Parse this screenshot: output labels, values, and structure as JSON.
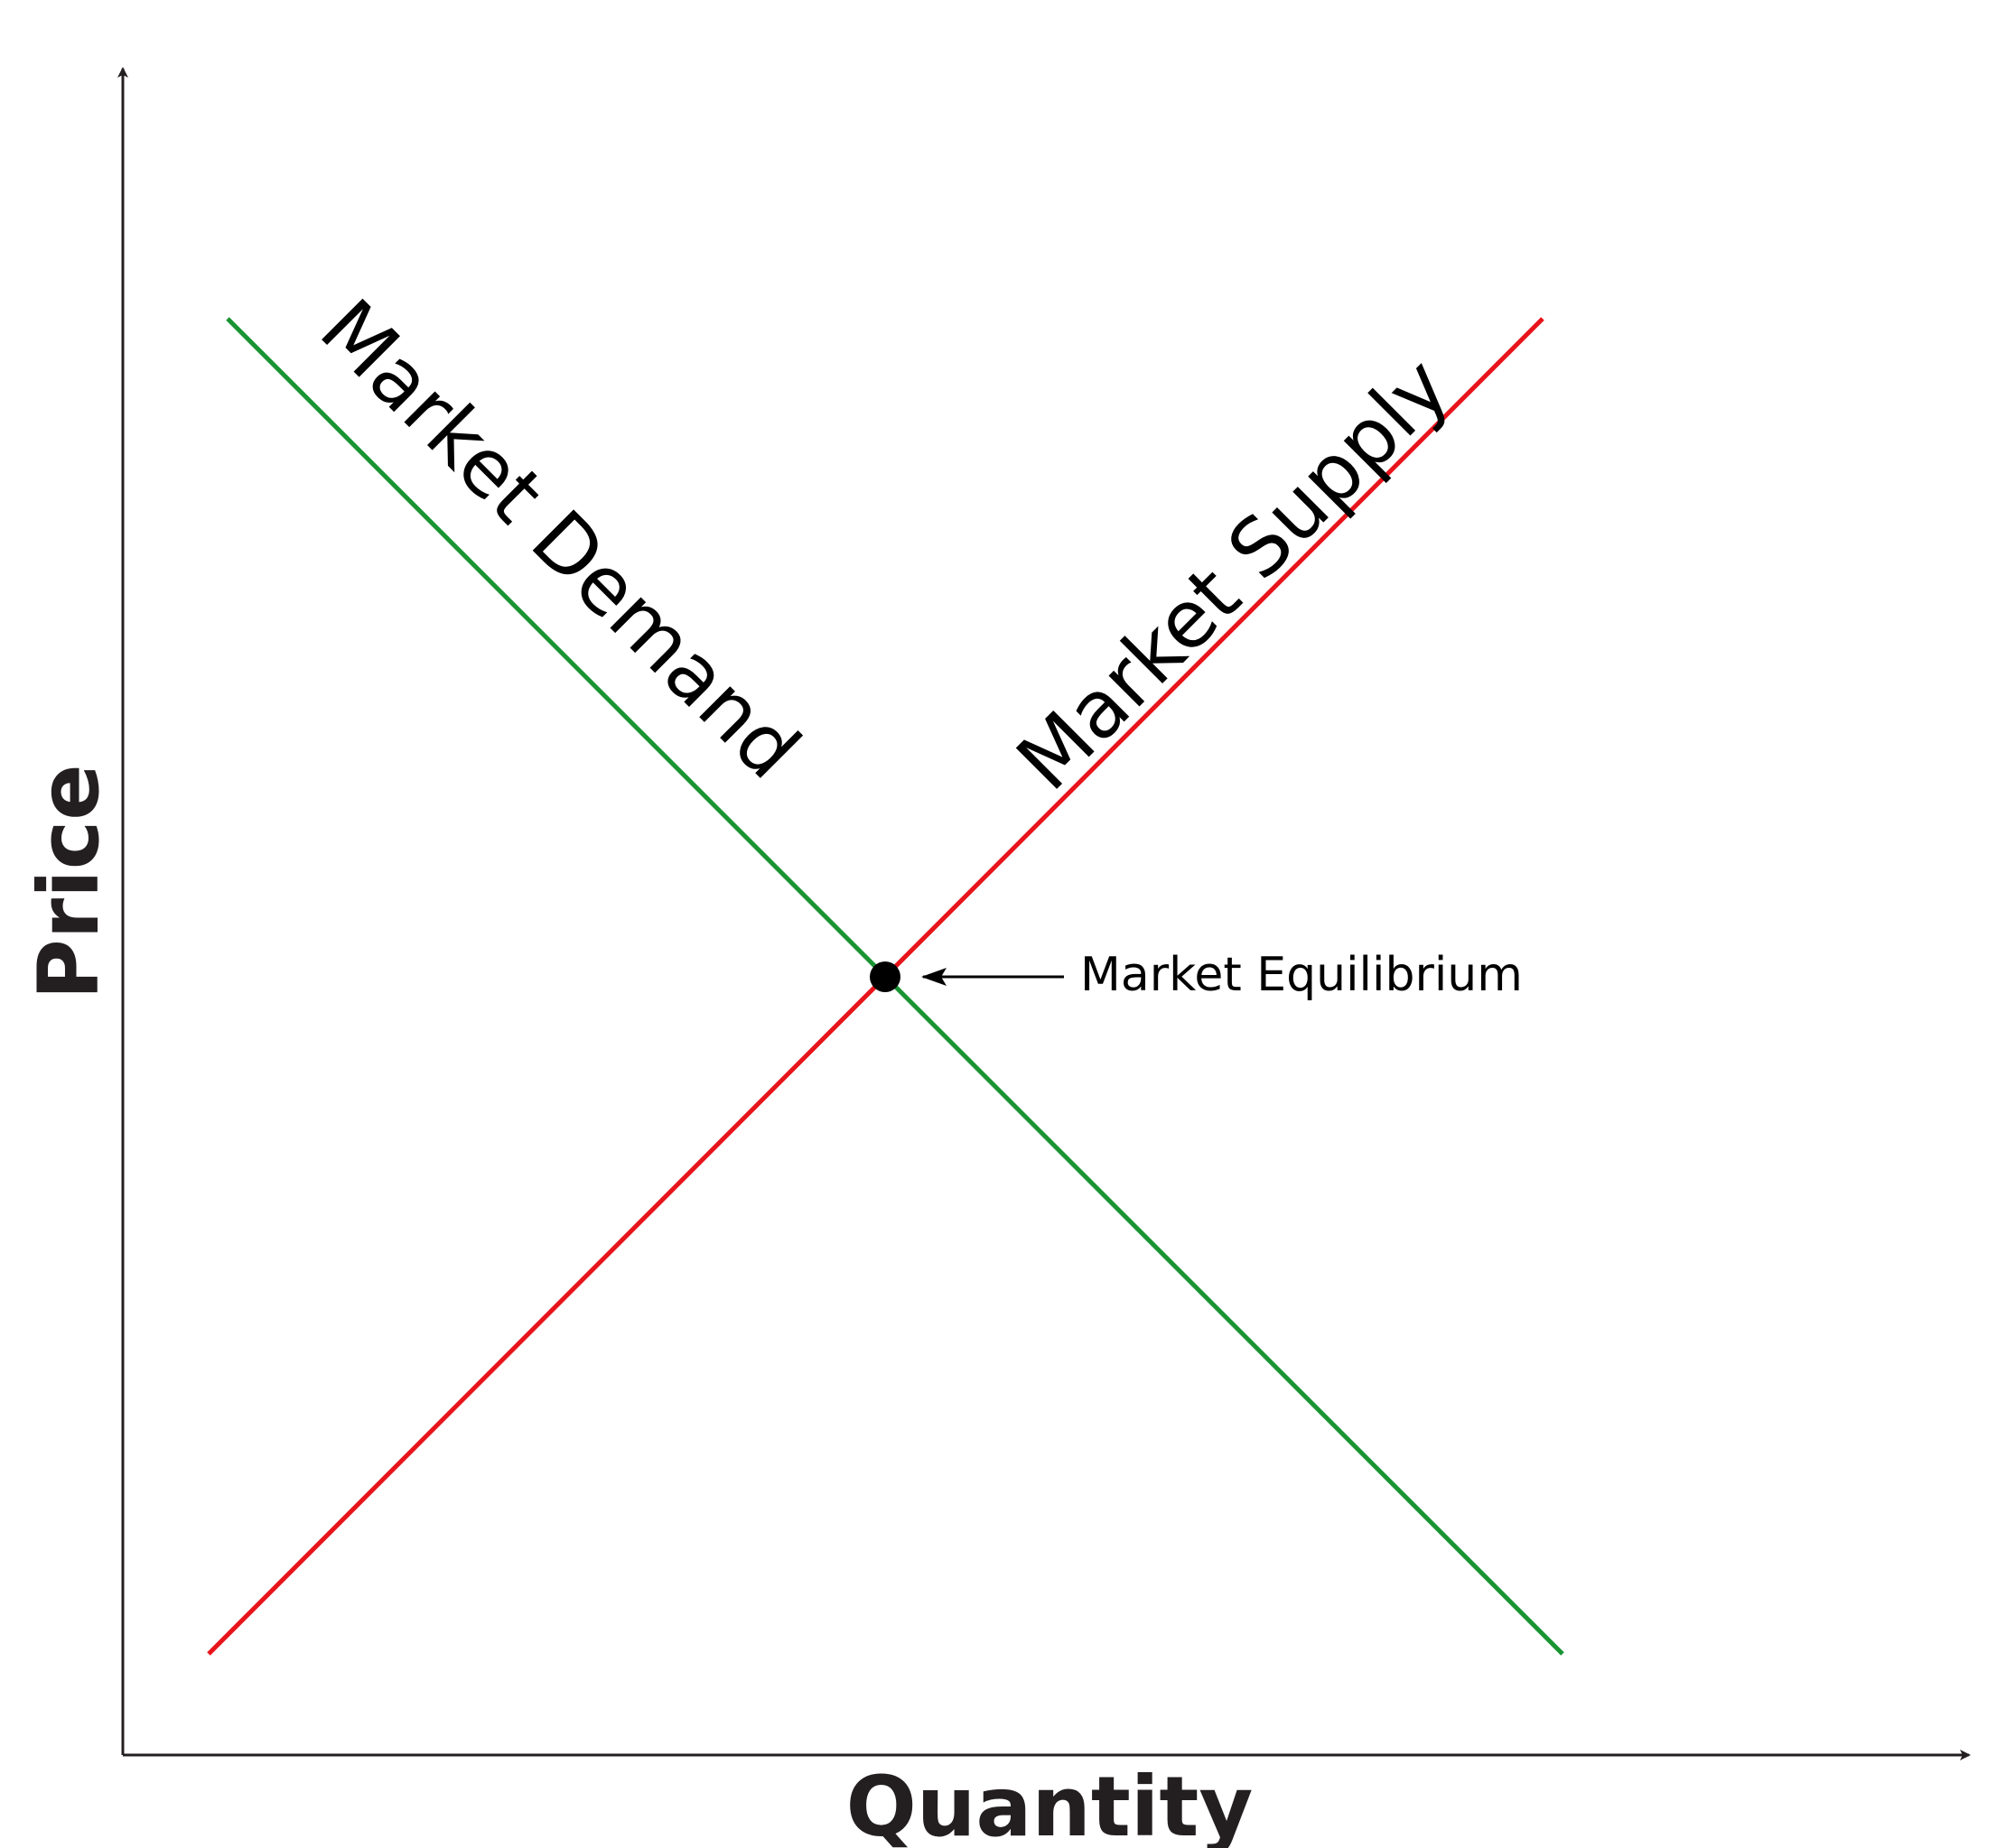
{
  "axes": {
    "x_label": "Quantity",
    "y_label": "Price"
  },
  "curves": {
    "demand": {
      "label": "Market Demand",
      "color": "#1a9433"
    },
    "supply": {
      "label": "Market Supply",
      "color": "#e8141b"
    }
  },
  "equilibrium": {
    "label": "Market Equilibrium",
    "marker_color": "#000000"
  },
  "colors": {
    "axis": "#231f20",
    "background": "#ffffff"
  }
}
